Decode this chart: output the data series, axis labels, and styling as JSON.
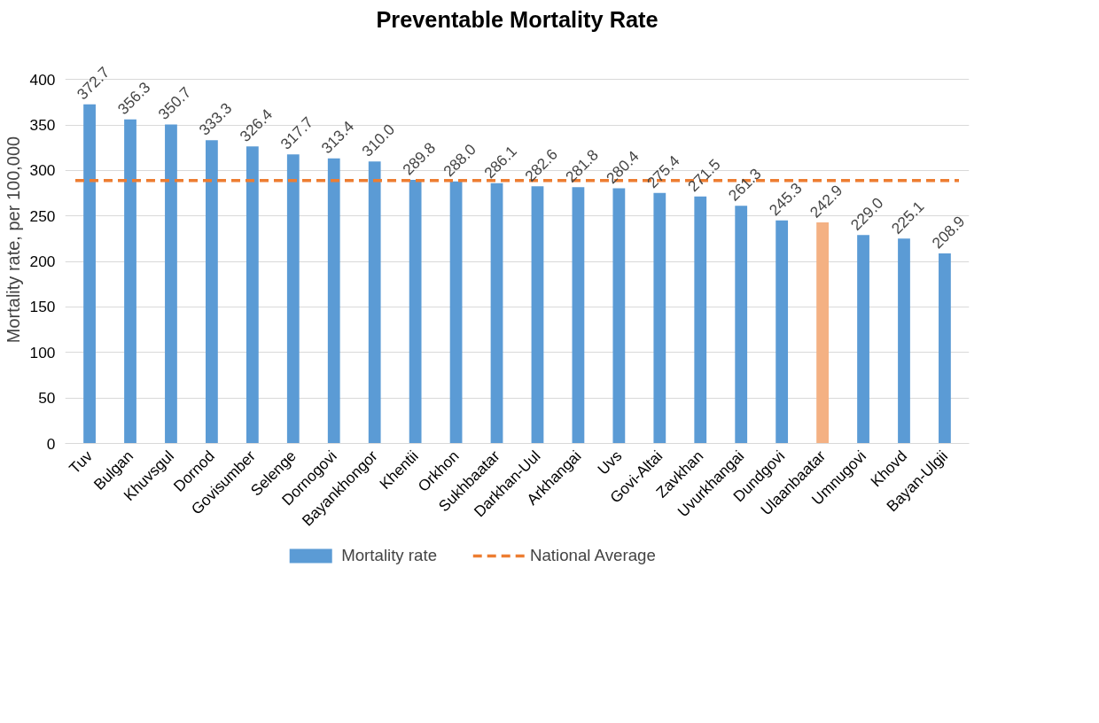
{
  "chart_data": {
    "type": "bar",
    "title": "Preventable Mortality Rate",
    "ylabel": "Mortality rate, per 100,000",
    "categories": [
      "Tuv",
      "Bulgan",
      "Khuvsgul",
      "Dornod",
      "Govisumber",
      "Selenge",
      "Dornogovi",
      "Bayankhongor",
      "Khentii",
      "Orkhon",
      "Sukhbaatar",
      "Darkhan-Uul",
      "Arkhangai",
      "Uvs",
      "Govi-Altai",
      "Zavkhan",
      "Uvurkhangai",
      "Dundgovi",
      "Ulaanbaatar",
      "Umnugovi",
      "Khovd",
      "Bayan-Ulgii"
    ],
    "series": [
      {
        "name": "Mortality rate",
        "color": "#5b9bd5",
        "colors": [
          "#5b9bd5",
          "#5b9bd5",
          "#5b9bd5",
          "#5b9bd5",
          "#5b9bd5",
          "#5b9bd5",
          "#5b9bd5",
          "#5b9bd5",
          "#5b9bd5",
          "#5b9bd5",
          "#5b9bd5",
          "#5b9bd5",
          "#5b9bd5",
          "#5b9bd5",
          "#5b9bd5",
          "#5b9bd5",
          "#5b9bd5",
          "#5b9bd5",
          "#f4b183",
          "#5b9bd5",
          "#5b9bd5",
          "#5b9bd5"
        ],
        "values": [
          372.7,
          356.3,
          350.7,
          333.3,
          326.4,
          317.7,
          313.4,
          310.0,
          289.8,
          288.0,
          286.1,
          282.6,
          281.8,
          280.4,
          275.4,
          271.5,
          261.3,
          245.3,
          242.9,
          229.0,
          225.1,
          208.9
        ],
        "value_labels": [
          "372.7",
          "356.3",
          "350.7",
          "333.3",
          "326.4",
          "317.7",
          "313.4",
          "310.0",
          "289.8",
          "288.0",
          "286.1",
          "282.6",
          "281.8",
          "280.4",
          "275.4",
          "271.5",
          "261.3",
          "245.3",
          "242.9",
          "229.0",
          "225.1",
          "208.9"
        ]
      }
    ],
    "ref_lines": [
      {
        "axis": "y",
        "value": 289,
        "label": "National Average",
        "color": "#ed7d31",
        "line_style": "dashed"
      }
    ],
    "ylim": [
      0,
      400
    ],
    "yticks": [
      0,
      50,
      100,
      150,
      200,
      250,
      300,
      350,
      400
    ],
    "grid": "y",
    "legend": "bottom"
  }
}
